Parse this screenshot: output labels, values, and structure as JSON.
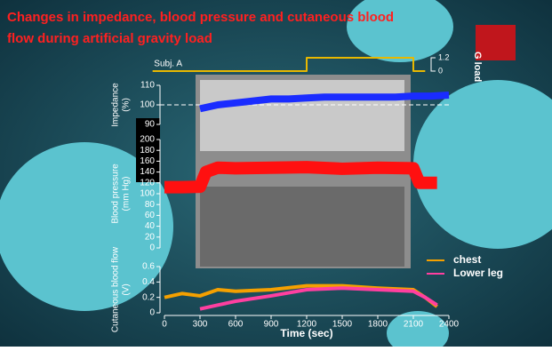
{
  "title": [
    "Changes in impedance, blood pressure and cutaneous blood",
    "flow during artificial gravity load"
  ],
  "chart_data": [
    {
      "type": "line",
      "label": "Subj. A",
      "ylabel": [
        "G load"
      ],
      "series": [
        {
          "name": null,
          "color": "#e8b800",
          "x": [
            -100,
            1200,
            1200,
            2100,
            2100,
            2200
          ],
          "values": [
            0,
            0,
            1.2,
            1.2,
            0,
            0
          ]
        }
      ],
      "ylim": [
        0,
        1.2
      ],
      "yticks": [
        1.2,
        0
      ]
    },
    {
      "type": "line",
      "ylabel": [
        "Impedance",
        "(%)"
      ],
      "series": [
        {
          "name": null,
          "color": "#1a2cff",
          "x": [
            300,
            450,
            600,
            750,
            900,
            1050,
            1200,
            1350,
            1500,
            1650,
            1800,
            1950,
            2100,
            2250,
            2400
          ],
          "values": [
            98,
            100,
            101,
            102,
            103,
            103,
            103.5,
            104,
            104,
            104,
            104,
            104,
            104.5,
            104.5,
            105
          ]
        }
      ],
      "reference": 100,
      "ylim": [
        90,
        110
      ],
      "yticks": [
        90,
        100,
        110
      ]
    },
    {
      "type": "line",
      "ylabel": [
        "Blood pressure",
        "(mm Hg)"
      ],
      "series": [
        {
          "name": null,
          "color": "#ff1010",
          "x": [
            0,
            150,
            300,
            350,
            450,
            600,
            900,
            1200,
            1500,
            1800,
            2100,
            2150,
            2300
          ],
          "values": [
            112,
            112,
            113,
            140,
            148,
            147,
            148,
            149,
            146,
            148,
            147,
            120,
            120
          ]
        }
      ],
      "ylim": [
        0,
        200
      ],
      "yticks": [
        0,
        20,
        40,
        60,
        80,
        100,
        120,
        140,
        160,
        180,
        200
      ]
    },
    {
      "type": "line",
      "ylabel": [
        "Cutaneous blood flow",
        "(V)"
      ],
      "xlabel": "Time (sec)",
      "series": [
        {
          "name": "chest",
          "color": "#f5a000",
          "x": [
            0,
            150,
            300,
            450,
            600,
            900,
            1200,
            1500,
            1800,
            2100,
            2200,
            2300
          ],
          "values": [
            0.2,
            0.25,
            0.22,
            0.3,
            0.28,
            0.3,
            0.35,
            0.35,
            0.32,
            0.3,
            0.2,
            0.08
          ]
        },
        {
          "name": "Lower leg",
          "color": "#ff3fa0",
          "x": [
            0,
            150,
            300,
            450,
            600,
            900,
            1200,
            1500,
            1800,
            2100,
            2200,
            2300
          ],
          "values": [
            null,
            null,
            0.05,
            0.1,
            0.15,
            0.22,
            0.3,
            0.32,
            0.3,
            0.28,
            0.2,
            0.1
          ]
        }
      ],
      "xlim": [
        0,
        2400
      ],
      "xticks": [
        0,
        300,
        600,
        900,
        1200,
        1500,
        1800,
        2100,
        2400
      ],
      "ylim": [
        0,
        0.6
      ],
      "yticks": [
        0,
        0.2,
        0.4,
        0.6
      ]
    }
  ]
}
